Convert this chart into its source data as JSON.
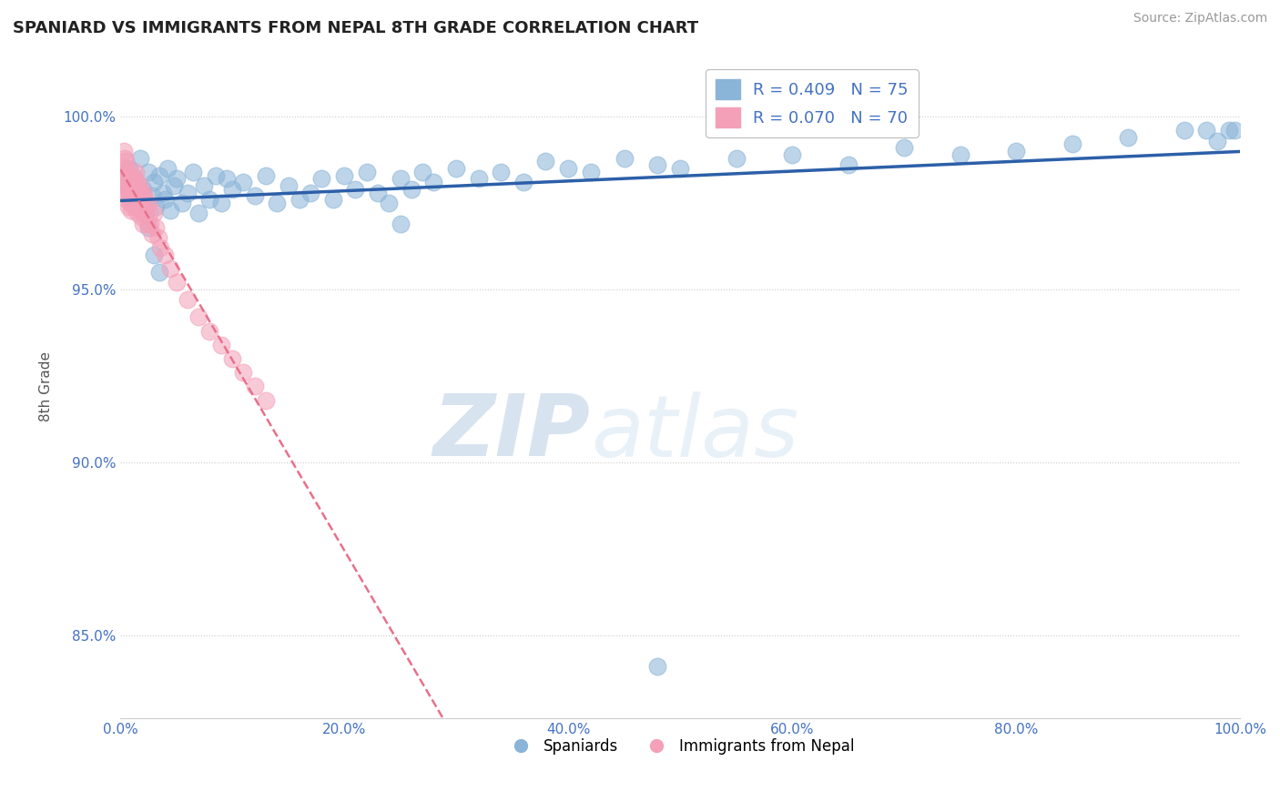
{
  "title": "SPANIARD VS IMMIGRANTS FROM NEPAL 8TH GRADE CORRELATION CHART",
  "source_text": "Source: ZipAtlas.com",
  "ylabel": "8th Grade",
  "watermark_zip": "ZIP",
  "watermark_atlas": "atlas",
  "legend_blue_label": "R = 0.409   N = 75",
  "legend_pink_label": "R = 0.070   N = 70",
  "legend_spaniards": "Spaniards",
  "legend_nepal": "Immigrants from Nepal",
  "blue_color": "#8ab4d8",
  "pink_color": "#f4a0b8",
  "blue_line_color": "#2c5fa8",
  "pink_line_color": "#e8708a",
  "xlim": [
    0.0,
    1.0
  ],
  "ylim": [
    0.826,
    1.018
  ],
  "x_ticks": [
    0.0,
    0.2,
    0.4,
    0.6,
    0.8,
    1.0
  ],
  "y_ticks": [
    0.85,
    0.9,
    0.95,
    1.0
  ],
  "x_tick_labels": [
    "0.0%",
    "20.0%",
    "40.0%",
    "60.0%",
    "80.0%",
    "100.0%"
  ],
  "y_tick_labels": [
    "85.0%",
    "90.0%",
    "95.0%",
    "100.0%"
  ],
  "blue_x": [
    0.005,
    0.008,
    0.01,
    0.012,
    0.015,
    0.018,
    0.02,
    0.022,
    0.025,
    0.028,
    0.03,
    0.032,
    0.035,
    0.038,
    0.04,
    0.042,
    0.045,
    0.048,
    0.05,
    0.055,
    0.06,
    0.065,
    0.07,
    0.075,
    0.08,
    0.085,
    0.09,
    0.095,
    0.1,
    0.11,
    0.12,
    0.13,
    0.14,
    0.15,
    0.16,
    0.17,
    0.18,
    0.19,
    0.2,
    0.21,
    0.22,
    0.23,
    0.24,
    0.25,
    0.26,
    0.27,
    0.28,
    0.3,
    0.32,
    0.34,
    0.36,
    0.38,
    0.4,
    0.42,
    0.45,
    0.48,
    0.5,
    0.55,
    0.6,
    0.65,
    0.7,
    0.75,
    0.8,
    0.85,
    0.9,
    0.95,
    0.97,
    0.98,
    0.99,
    0.995,
    0.025,
    0.03,
    0.035,
    0.25,
    0.48
  ],
  "blue_y": [
    0.98,
    0.985,
    0.976,
    0.982,
    0.975,
    0.988,
    0.979,
    0.972,
    0.984,
    0.977,
    0.981,
    0.974,
    0.983,
    0.978,
    0.976,
    0.985,
    0.973,
    0.98,
    0.982,
    0.975,
    0.978,
    0.984,
    0.972,
    0.98,
    0.976,
    0.983,
    0.975,
    0.982,
    0.979,
    0.981,
    0.977,
    0.983,
    0.975,
    0.98,
    0.976,
    0.978,
    0.982,
    0.976,
    0.983,
    0.979,
    0.984,
    0.978,
    0.975,
    0.982,
    0.979,
    0.984,
    0.981,
    0.985,
    0.982,
    0.984,
    0.981,
    0.987,
    0.985,
    0.984,
    0.988,
    0.986,
    0.985,
    0.988,
    0.989,
    0.986,
    0.991,
    0.989,
    0.99,
    0.992,
    0.994,
    0.996,
    0.996,
    0.993,
    0.996,
    0.996,
    0.968,
    0.96,
    0.955,
    0.969,
    0.841
  ],
  "pink_x": [
    0.002,
    0.003,
    0.004,
    0.005,
    0.005,
    0.006,
    0.006,
    0.007,
    0.007,
    0.008,
    0.008,
    0.009,
    0.009,
    0.01,
    0.01,
    0.01,
    0.011,
    0.011,
    0.012,
    0.012,
    0.012,
    0.013,
    0.013,
    0.014,
    0.014,
    0.015,
    0.015,
    0.016,
    0.016,
    0.017,
    0.017,
    0.018,
    0.018,
    0.019,
    0.019,
    0.02,
    0.02,
    0.021,
    0.022,
    0.023,
    0.024,
    0.025,
    0.026,
    0.027,
    0.028,
    0.03,
    0.032,
    0.034,
    0.036,
    0.04,
    0.045,
    0.05,
    0.06,
    0.07,
    0.08,
    0.09,
    0.1,
    0.11,
    0.12,
    0.13,
    0.003,
    0.004,
    0.005,
    0.006,
    0.007,
    0.008,
    0.009,
    0.01,
    0.015,
    0.02
  ],
  "pink_y": [
    0.985,
    0.982,
    0.98,
    0.984,
    0.978,
    0.981,
    0.976,
    0.979,
    0.974,
    0.983,
    0.977,
    0.98,
    0.975,
    0.982,
    0.978,
    0.973,
    0.98,
    0.976,
    0.983,
    0.978,
    0.974,
    0.981,
    0.977,
    0.984,
    0.979,
    0.976,
    0.981,
    0.978,
    0.974,
    0.98,
    0.976,
    0.973,
    0.978,
    0.975,
    0.971,
    0.977,
    0.973,
    0.978,
    0.975,
    0.972,
    0.969,
    0.975,
    0.972,
    0.969,
    0.966,
    0.972,
    0.968,
    0.965,
    0.962,
    0.96,
    0.956,
    0.952,
    0.947,
    0.942,
    0.938,
    0.934,
    0.93,
    0.926,
    0.922,
    0.918,
    0.99,
    0.988,
    0.987,
    0.985,
    0.983,
    0.982,
    0.98,
    0.978,
    0.972,
    0.969
  ]
}
